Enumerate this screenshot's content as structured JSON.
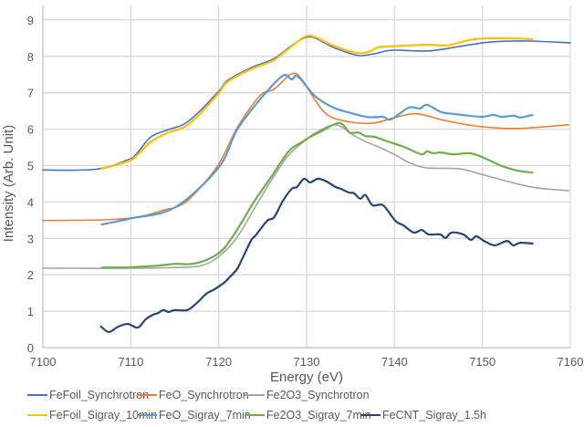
{
  "chart_data": {
    "type": "line",
    "title": "",
    "xlabel": "Energy (eV)",
    "ylabel": "Intensity (Arb. Unit)",
    "xlim": [
      7100,
      7160
    ],
    "ylim": [
      0,
      9.5
    ],
    "x_ticks": [
      7100,
      7110,
      7120,
      7130,
      7140,
      7150,
      7160
    ],
    "y_ticks": [
      0,
      1,
      2,
      3,
      4,
      5,
      6,
      7,
      8,
      9
    ],
    "grid": true,
    "legend_position": "bottom",
    "series": [
      {
        "name": "FeFoil_Synchrotron",
        "color": "#4472C4",
        "points": [
          [
            7100,
            4.88
          ],
          [
            7106,
            4.9
          ],
          [
            7109.7,
            5.16
          ],
          [
            7110.7,
            5.34
          ],
          [
            7112.3,
            5.79
          ],
          [
            7114.3,
            5.99
          ],
          [
            7115.9,
            6.12
          ],
          [
            7117.4,
            6.39
          ],
          [
            7120,
            7.04
          ],
          [
            7121,
            7.34
          ],
          [
            7123.7,
            7.69
          ],
          [
            7126.3,
            7.94
          ],
          [
            7128.3,
            8.3
          ],
          [
            7129.9,
            8.52
          ],
          [
            7131,
            8.5
          ],
          [
            7133,
            8.25
          ],
          [
            7135.1,
            8.07
          ],
          [
            7136.1,
            8.02
          ],
          [
            7137.7,
            8.07
          ],
          [
            7139.8,
            8.17
          ],
          [
            7143.9,
            8.15
          ],
          [
            7148.1,
            8.3
          ],
          [
            7151.2,
            8.4
          ],
          [
            7155.3,
            8.42
          ],
          [
            7160,
            8.37
          ]
        ]
      },
      {
        "name": "FeO_Synchrotron",
        "color": "#ED7D31",
        "points": [
          [
            7100,
            3.49
          ],
          [
            7106.7,
            3.51
          ],
          [
            7110.7,
            3.58
          ],
          [
            7113.8,
            3.78
          ],
          [
            7115.4,
            3.88
          ],
          [
            7117,
            4.16
          ],
          [
            7120,
            5.04
          ],
          [
            7122.1,
            6.04
          ],
          [
            7124.7,
            6.92
          ],
          [
            7126.3,
            7.1
          ],
          [
            7128.3,
            7.52
          ],
          [
            7129.4,
            7.39
          ],
          [
            7131,
            6.79
          ],
          [
            7132.5,
            6.37
          ],
          [
            7135.1,
            6.19
          ],
          [
            7137.7,
            6.17
          ],
          [
            7140.3,
            6.34
          ],
          [
            7142.6,
            6.42
          ],
          [
            7145.7,
            6.24
          ],
          [
            7149.1,
            6.09
          ],
          [
            7152,
            6.03
          ],
          [
            7154,
            6.02
          ],
          [
            7155.7,
            6.04
          ],
          [
            7159.8,
            6.12
          ]
        ]
      },
      {
        "name": "Fe2O3_Synchrotron",
        "color": "#A5A5A5",
        "points": [
          [
            7100,
            2.18
          ],
          [
            7110,
            2.18
          ],
          [
            7115,
            2.2
          ],
          [
            7118,
            2.25
          ],
          [
            7120,
            2.5
          ],
          [
            7122,
            3.0
          ],
          [
            7124,
            3.8
          ],
          [
            7126,
            4.6
          ],
          [
            7128,
            5.3
          ],
          [
            7130,
            5.72
          ],
          [
            7131,
            5.9
          ],
          [
            7133.3,
            6.12
          ],
          [
            7135.3,
            5.84
          ],
          [
            7136.7,
            5.66
          ],
          [
            7138.4,
            5.49
          ],
          [
            7140.1,
            5.29
          ],
          [
            7141.6,
            5.09
          ],
          [
            7143.6,
            4.94
          ],
          [
            7147.4,
            4.91
          ],
          [
            7150.2,
            4.74
          ],
          [
            7153.3,
            4.54
          ],
          [
            7156.1,
            4.39
          ],
          [
            7159.8,
            4.31
          ]
        ]
      },
      {
        "name": "FeFoil_Sigray_10min",
        "color": "#FFC000",
        "points": [
          [
            7106.7,
            4.91
          ],
          [
            7109.7,
            5.12
          ],
          [
            7110.7,
            5.28
          ],
          [
            7112.3,
            5.66
          ],
          [
            7114.3,
            5.91
          ],
          [
            7115.9,
            6.04
          ],
          [
            7117.4,
            6.3
          ],
          [
            7120,
            6.99
          ],
          [
            7121,
            7.3
          ],
          [
            7123.7,
            7.65
          ],
          [
            7126.3,
            7.9
          ],
          [
            7128.3,
            8.28
          ],
          [
            7129.9,
            8.55
          ],
          [
            7131,
            8.53
          ],
          [
            7133,
            8.3
          ],
          [
            7135.6,
            8.1
          ],
          [
            7137,
            8.12
          ],
          [
            7138.2,
            8.25
          ],
          [
            7140,
            8.28
          ],
          [
            7143.9,
            8.32
          ],
          [
            7146,
            8.3
          ],
          [
            7149,
            8.47
          ],
          [
            7152.7,
            8.5
          ],
          [
            7155.7,
            8.47
          ]
        ]
      },
      {
        "name": "FeO_Sigray_7min",
        "color": "#5B9BD5",
        "points": [
          [
            7106.7,
            3.38
          ],
          [
            7110,
            3.55
          ],
          [
            7115,
            3.85
          ],
          [
            7120,
            4.95
          ],
          [
            7122.1,
            5.99
          ],
          [
            7125,
            6.9
          ],
          [
            7127.3,
            7.47
          ],
          [
            7128.3,
            7.37
          ],
          [
            7129,
            7.45
          ],
          [
            7131,
            6.9
          ],
          [
            7133,
            6.6
          ],
          [
            7135.1,
            6.44
          ],
          [
            7137,
            6.33
          ],
          [
            7138.7,
            6.34
          ],
          [
            7139.6,
            6.27
          ],
          [
            7141.6,
            6.59
          ],
          [
            7142.9,
            6.57
          ],
          [
            7143.7,
            6.67
          ],
          [
            7145.3,
            6.47
          ],
          [
            7146.7,
            6.42
          ],
          [
            7149.8,
            6.34
          ],
          [
            7151.2,
            6.39
          ],
          [
            7152.2,
            6.34
          ],
          [
            7153.6,
            6.37
          ],
          [
            7154.3,
            6.32
          ],
          [
            7155.7,
            6.39
          ]
        ]
      },
      {
        "name": "Fe2O3_Sigray_7min",
        "color": "#70AD47",
        "points": [
          [
            7106.7,
            2.2
          ],
          [
            7110,
            2.21
          ],
          [
            7113,
            2.25
          ],
          [
            7115,
            2.3
          ],
          [
            7117,
            2.3
          ],
          [
            7119,
            2.45
          ],
          [
            7120.5,
            2.7
          ],
          [
            7122,
            3.2
          ],
          [
            7124,
            4.0
          ],
          [
            7126,
            4.7
          ],
          [
            7128,
            5.4
          ],
          [
            7129.5,
            5.65
          ],
          [
            7130.5,
            5.8
          ],
          [
            7131.5,
            5.92
          ],
          [
            7133.7,
            6.17
          ],
          [
            7134.9,
            5.91
          ],
          [
            7135.9,
            5.91
          ],
          [
            7136.7,
            5.81
          ],
          [
            7137.7,
            5.79
          ],
          [
            7139.5,
            5.64
          ],
          [
            7140.8,
            5.54
          ],
          [
            7141.6,
            5.46
          ],
          [
            7143.1,
            5.31
          ],
          [
            7143.7,
            5.39
          ],
          [
            7144.4,
            5.34
          ],
          [
            7145.3,
            5.36
          ],
          [
            7146.7,
            5.31
          ],
          [
            7148.6,
            5.34
          ],
          [
            7150.2,
            5.21
          ],
          [
            7152.2,
            4.99
          ],
          [
            7154,
            4.86
          ],
          [
            7155.7,
            4.81
          ]
        ]
      },
      {
        "name": "FeCNT_Sigray_1.5h",
        "color": "#264478",
        "points": [
          [
            7106.6,
            0.58
          ],
          [
            7107.5,
            0.43
          ],
          [
            7108.6,
            0.58
          ],
          [
            7109.7,
            0.65
          ],
          [
            7110.8,
            0.55
          ],
          [
            7111.7,
            0.78
          ],
          [
            7112.5,
            0.9
          ],
          [
            7113.1,
            0.95
          ],
          [
            7113.7,
            1.03
          ],
          [
            7114.3,
            0.98
          ],
          [
            7115,
            1.03
          ],
          [
            7116.4,
            1.03
          ],
          [
            7117.4,
            1.2
          ],
          [
            7118.6,
            1.48
          ],
          [
            7119.5,
            1.6
          ],
          [
            7120.6,
            1.78
          ],
          [
            7121.1,
            1.9
          ],
          [
            7122.1,
            2.16
          ],
          [
            7122.6,
            2.4
          ],
          [
            7123.7,
            2.95
          ],
          [
            7124.2,
            3.08
          ],
          [
            7125.5,
            3.48
          ],
          [
            7126.3,
            3.58
          ],
          [
            7127.3,
            4.03
          ],
          [
            7128.3,
            4.36
          ],
          [
            7128.9,
            4.41
          ],
          [
            7129.7,
            4.64
          ],
          [
            7130.4,
            4.54
          ],
          [
            7131.3,
            4.64
          ],
          [
            7132.3,
            4.56
          ],
          [
            7133.3,
            4.41
          ],
          [
            7133.9,
            4.36
          ],
          [
            7134.8,
            4.26
          ],
          [
            7135.4,
            4.24
          ],
          [
            7136.1,
            4.09
          ],
          [
            7136.7,
            4.19
          ],
          [
            7137.5,
            3.91
          ],
          [
            7138.7,
            3.91
          ],
          [
            7140.1,
            3.48
          ],
          [
            7141,
            3.36
          ],
          [
            7142.2,
            3.16
          ],
          [
            7143.1,
            3.23
          ],
          [
            7143.9,
            3.11
          ],
          [
            7145.2,
            3.11
          ],
          [
            7145.8,
            3.01
          ],
          [
            7146.5,
            3.16
          ],
          [
            7147.8,
            3.11
          ],
          [
            7148.7,
            2.96
          ],
          [
            7149.3,
            3.06
          ],
          [
            7150.2,
            2.93
          ],
          [
            7151.4,
            2.81
          ],
          [
            7152.8,
            2.93
          ],
          [
            7153.5,
            2.81
          ],
          [
            7154.3,
            2.88
          ],
          [
            7155.7,
            2.86
          ]
        ]
      }
    ],
    "legend_rows": [
      [
        "FeFoil_Synchrotron",
        "FeO_Synchrotron",
        "Fe2O3_Synchrotron"
      ],
      [
        "FeFoil_Sigray_10min",
        "FeO_Sigray_7min",
        "Fe2O3_Sigray_7min",
        "FeCNT_Sigray_1.5h"
      ]
    ]
  }
}
